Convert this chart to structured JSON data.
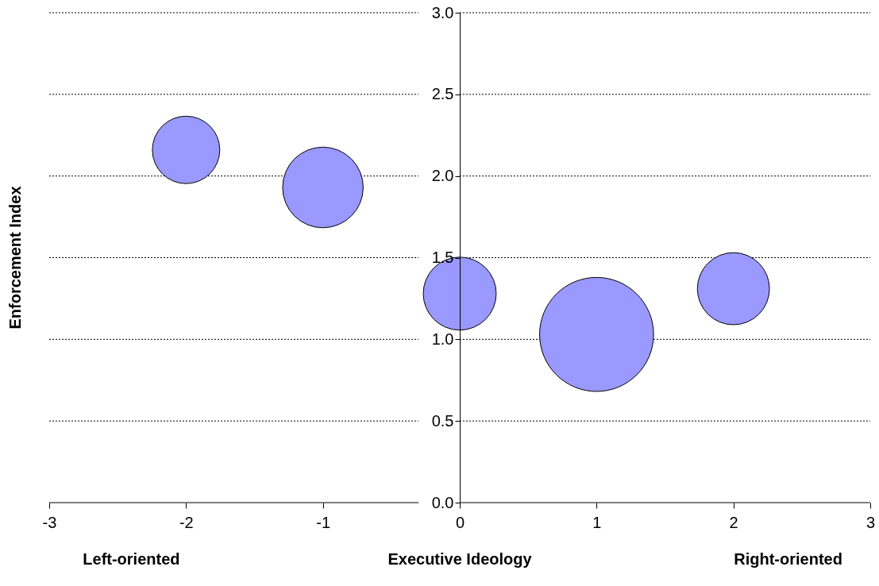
{
  "chart_data": {
    "type": "bubble",
    "xlabel": "Executive Ideology",
    "ylabel": "Enforcement Index",
    "x": [
      -2,
      -1,
      0,
      1,
      2
    ],
    "series": [
      {
        "color": "#9999ff",
        "values": [
          2.16,
          1.93,
          1.28,
          1.03,
          1.31
        ],
        "sizes": [
          0.35,
          0.5,
          0.41,
          1,
          0.4
        ]
      }
    ],
    "xlim": [
      -3,
      3
    ],
    "xticks": [
      -3,
      -2,
      -1,
      0,
      1,
      2,
      3
    ],
    "ylim": [
      0,
      3
    ],
    "yticks": [
      {
        "value": 0,
        "label": "0.0"
      },
      {
        "value": 0.5,
        "label": "0.5"
      },
      {
        "value": 1,
        "label": "1.0"
      },
      {
        "value": 1.5,
        "label": "1.5"
      },
      {
        "value": 2,
        "label": "2.0"
      },
      {
        "value": 2.5,
        "label": "2.5"
      },
      {
        "value": 3,
        "label": "3.0"
      }
    ],
    "grid": "y",
    "annotations": [
      "Left-oriented",
      "Right-oriented"
    ]
  }
}
